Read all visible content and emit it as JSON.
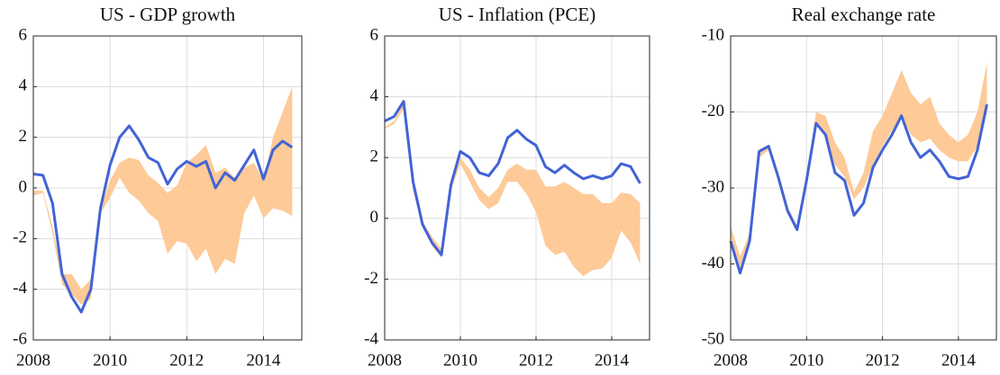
{
  "chart_data": [
    {
      "type": "line",
      "title": "US - GDP growth",
      "x": [
        2008,
        2008.25,
        2008.5,
        2008.75,
        2009,
        2009.25,
        2009.5,
        2009.75,
        2010,
        2010.25,
        2010.5,
        2010.75,
        2011,
        2011.25,
        2011.5,
        2011.75,
        2012,
        2012.25,
        2012.5,
        2012.75,
        2013,
        2013.25,
        2013.5,
        2013.75,
        2014,
        2014.25,
        2014.5,
        2014.75
      ],
      "values": [
        0.55,
        0.5,
        -0.6,
        -3.4,
        -4.3,
        -4.9,
        -4.0,
        -0.8,
        0.9,
        2.0,
        2.45,
        1.9,
        1.2,
        1.0,
        0.15,
        0.75,
        1.05,
        0.85,
        1.05,
        0.0,
        0.6,
        0.3,
        0.9,
        1.5,
        0.35,
        1.5,
        1.85,
        1.6
      ],
      "band_upper": [
        -0.1,
        -0.1,
        -1.5,
        -3.4,
        -3.4,
        -4.0,
        -3.6,
        -0.8,
        0.3,
        1.0,
        1.2,
        1.1,
        0.5,
        0.2,
        -0.2,
        0.1,
        1.0,
        1.3,
        1.7,
        0.6,
        0.8,
        0.4,
        0.8,
        1.0,
        0.3,
        2.0,
        3.0,
        4.0
      ],
      "band_lower": [
        -0.3,
        -0.2,
        -1.8,
        -3.8,
        -4.2,
        -4.6,
        -4.4,
        -1.0,
        -0.4,
        0.4,
        -0.2,
        -0.5,
        -1.0,
        -1.3,
        -2.6,
        -2.1,
        -2.2,
        -2.9,
        -2.4,
        -3.4,
        -2.8,
        -3.0,
        -1.0,
        -0.3,
        -1.2,
        -0.8,
        -0.9,
        -1.1
      ],
      "color": "#4263d6",
      "band_color": "#fdca98",
      "xlim": [
        2008,
        2015
      ],
      "xticks": [
        2008,
        2010,
        2012,
        2014
      ],
      "ylim": [
        -6,
        6
      ],
      "yticks": [
        -6,
        -4,
        -2,
        0,
        2,
        4,
        6
      ],
      "grid": true
    },
    {
      "type": "line",
      "title": "US - Inflation (PCE)",
      "x": [
        2008,
        2008.25,
        2008.5,
        2008.75,
        2009,
        2009.25,
        2009.5,
        2009.75,
        2010,
        2010.25,
        2010.5,
        2010.75,
        2011,
        2011.25,
        2011.5,
        2011.75,
        2012,
        2012.25,
        2012.5,
        2012.75,
        2013,
        2013.25,
        2013.5,
        2013.75,
        2014,
        2014.25,
        2014.5,
        2014.75
      ],
      "values": [
        3.2,
        3.35,
        3.85,
        1.2,
        -0.2,
        -0.8,
        -1.2,
        1.1,
        2.2,
        2.0,
        1.5,
        1.4,
        1.8,
        2.65,
        2.9,
        2.6,
        2.4,
        1.7,
        1.5,
        1.75,
        1.5,
        1.3,
        1.4,
        1.3,
        1.4,
        1.8,
        1.7,
        1.15
      ],
      "band_upper": [
        3.0,
        3.2,
        3.8,
        1.0,
        -0.1,
        -0.6,
        -1.0,
        1.0,
        2.0,
        1.6,
        1.0,
        0.7,
        1.0,
        1.6,
        1.8,
        1.6,
        1.6,
        1.05,
        1.05,
        1.2,
        1.0,
        0.8,
        0.8,
        0.5,
        0.5,
        0.85,
        0.8,
        0.5
      ],
      "band_lower": [
        2.95,
        3.1,
        3.6,
        0.9,
        -0.3,
        -0.9,
        -1.3,
        0.9,
        1.8,
        1.2,
        0.6,
        0.3,
        0.5,
        1.2,
        1.2,
        0.8,
        0.2,
        -0.9,
        -1.2,
        -1.1,
        -1.6,
        -1.9,
        -1.7,
        -1.65,
        -1.3,
        -0.4,
        -0.8,
        -1.5
      ],
      "color": "#4263d6",
      "band_color": "#fdca98",
      "xlim": [
        2008,
        2015
      ],
      "xticks": [
        2008,
        2010,
        2012,
        2014
      ],
      "ylim": [
        -4,
        6
      ],
      "yticks": [
        -4,
        -2,
        0,
        2,
        4,
        6
      ],
      "grid": true
    },
    {
      "type": "line",
      "title": "Real exchange rate",
      "x": [
        2008,
        2008.25,
        2008.5,
        2008.75,
        2009,
        2009.25,
        2009.5,
        2009.75,
        2010,
        2010.25,
        2010.5,
        2010.75,
        2011,
        2011.25,
        2011.5,
        2011.75,
        2012,
        2012.25,
        2012.5,
        2012.75,
        2013,
        2013.25,
        2013.5,
        2013.75,
        2014,
        2014.25,
        2014.5,
        2014.75
      ],
      "values": [
        -37,
        -41.2,
        -37,
        -25.2,
        -24.5,
        -28.5,
        -33,
        -35.5,
        -29,
        -21.5,
        -23,
        -28,
        -29,
        -33.6,
        -32,
        -27.3,
        -25,
        -23,
        -20.5,
        -24,
        -26,
        -25,
        -26.5,
        -28.5,
        -28.8,
        -28.5,
        -25,
        -19
      ],
      "band_upper": [
        -35,
        -39,
        -36,
        -25,
        -24.3,
        -28,
        -32.5,
        -35,
        -28.5,
        -20,
        -20.5,
        -24,
        -26,
        -30.5,
        -28,
        -22.5,
        -20.5,
        -17.5,
        -14.5,
        -17.5,
        -19,
        -18,
        -21.5,
        -23,
        -24,
        -23,
        -20,
        -13.5
      ],
      "band_lower": [
        -36.5,
        -40.5,
        -36.8,
        -26,
        -25,
        -29,
        -33.2,
        -35.6,
        -28.8,
        -21.5,
        -23,
        -27,
        -28.5,
        -31.5,
        -30,
        -27,
        -24.5,
        -22.5,
        -20.5,
        -23,
        -24,
        -23.5,
        -25,
        -26,
        -26.5,
        -26.5,
        -24.5,
        -19.5
      ],
      "color": "#4263d6",
      "band_color": "#fdca98",
      "xlim": [
        2008,
        2015
      ],
      "xticks": [
        2008,
        2010,
        2012,
        2014
      ],
      "ylim": [
        -50,
        -10
      ],
      "yticks": [
        -50,
        -40,
        -30,
        -20,
        -10
      ],
      "grid": true
    }
  ]
}
